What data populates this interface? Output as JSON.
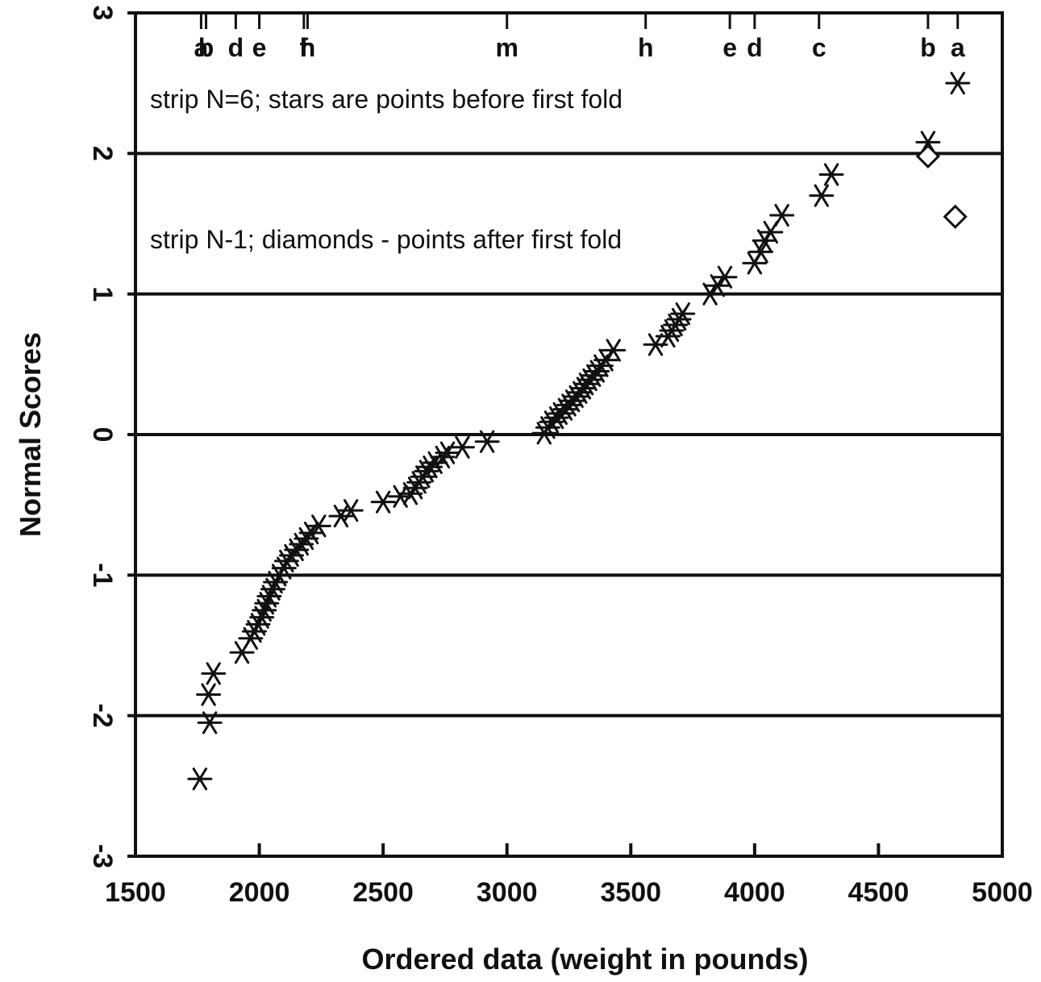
{
  "chart_data": {
    "type": "scatter",
    "title": "",
    "xlabel": "Ordered data (weight in pounds)",
    "ylabel": "Normal Scores",
    "xlim": [
      1500,
      5000
    ],
    "ylim": [
      -3,
      3
    ],
    "x_ticks": [
      1500,
      2000,
      2500,
      3000,
      3500,
      4000,
      4500,
      5000
    ],
    "x_tick_labels": [
      "1500",
      "2000",
      "2500",
      "3000",
      "3500",
      "4000",
      "4500",
      "5000"
    ],
    "y_ticks": [
      -3,
      -2,
      -1,
      0,
      1,
      2,
      3
    ],
    "y_tick_labels": [
      "-3",
      "-2",
      "-1",
      "0",
      "1",
      "2",
      "3"
    ],
    "grid": "horizontal",
    "annotations": [
      {
        "text": "strip N=6; stars are points before first fold"
      },
      {
        "text": "strip N-1; diamonds - points after first fold"
      }
    ],
    "letter_values": [
      {
        "label": "a",
        "x": 1765
      },
      {
        "label": "b",
        "x": 1785
      },
      {
        "label": "d",
        "x": 1905
      },
      {
        "label": "e",
        "x": 2000
      },
      {
        "label": "f",
        "x": 2180
      },
      {
        "label": "h",
        "x": 2195
      },
      {
        "label": "m",
        "x": 3000
      },
      {
        "label": "h",
        "x": 3560
      },
      {
        "label": "e",
        "x": 3900
      },
      {
        "label": "d",
        "x": 4000
      },
      {
        "label": "c",
        "x": 4260
      },
      {
        "label": "b",
        "x": 4700
      },
      {
        "label": "a",
        "x": 4820
      }
    ],
    "series": [
      {
        "marker": "star",
        "points": [
          [
            1760,
            -2.45
          ],
          [
            1800,
            -2.05
          ],
          [
            1795,
            -1.85
          ],
          [
            1815,
            -1.7
          ],
          [
            1930,
            -1.55
          ],
          [
            1965,
            -1.45
          ],
          [
            1980,
            -1.4
          ],
          [
            1995,
            -1.35
          ],
          [
            2010,
            -1.3
          ],
          [
            2020,
            -1.25
          ],
          [
            2030,
            -1.2
          ],
          [
            2040,
            -1.15
          ],
          [
            2055,
            -1.1
          ],
          [
            2065,
            -1.05
          ],
          [
            2080,
            -1.0
          ],
          [
            2100,
            -0.95
          ],
          [
            2110,
            -0.9
          ],
          [
            2130,
            -0.86
          ],
          [
            2150,
            -0.82
          ],
          [
            2170,
            -0.78
          ],
          [
            2190,
            -0.74
          ],
          [
            2210,
            -0.7
          ],
          [
            2240,
            -0.65
          ],
          [
            2330,
            -0.58
          ],
          [
            2370,
            -0.54
          ],
          [
            2500,
            -0.48
          ],
          [
            2570,
            -0.44
          ],
          [
            2610,
            -0.42
          ],
          [
            2630,
            -0.38
          ],
          [
            2645,
            -0.34
          ],
          [
            2660,
            -0.3
          ],
          [
            2675,
            -0.26
          ],
          [
            2690,
            -0.23
          ],
          [
            2710,
            -0.2
          ],
          [
            2740,
            -0.16
          ],
          [
            2760,
            -0.13
          ],
          [
            2820,
            -0.09
          ],
          [
            2920,
            -0.05
          ],
          [
            3150,
            0.01
          ],
          [
            3165,
            0.05
          ],
          [
            3180,
            0.09
          ],
          [
            3200,
            0.12
          ],
          [
            3215,
            0.15
          ],
          [
            3235,
            0.18
          ],
          [
            3250,
            0.21
          ],
          [
            3265,
            0.24
          ],
          [
            3280,
            0.27
          ],
          [
            3295,
            0.3
          ],
          [
            3310,
            0.33
          ],
          [
            3320,
            0.36
          ],
          [
            3335,
            0.39
          ],
          [
            3350,
            0.42
          ],
          [
            3365,
            0.45
          ],
          [
            3380,
            0.49
          ],
          [
            3400,
            0.53
          ],
          [
            3430,
            0.6
          ],
          [
            3600,
            0.64
          ],
          [
            3650,
            0.7
          ],
          [
            3665,
            0.74
          ],
          [
            3680,
            0.78
          ],
          [
            3695,
            0.82
          ],
          [
            3710,
            0.86
          ],
          [
            3820,
            1.0
          ],
          [
            3850,
            1.06
          ],
          [
            3880,
            1.12
          ],
          [
            4000,
            1.22
          ],
          [
            4025,
            1.3
          ],
          [
            4040,
            1.38
          ],
          [
            4065,
            1.44
          ],
          [
            4110,
            1.56
          ],
          [
            4270,
            1.7
          ],
          [
            4310,
            1.85
          ],
          [
            4700,
            2.08
          ],
          [
            4820,
            2.5
          ]
        ]
      },
      {
        "marker": "diamond",
        "points": [
          [
            4700,
            1.98
          ],
          [
            4810,
            1.55
          ]
        ]
      }
    ]
  }
}
